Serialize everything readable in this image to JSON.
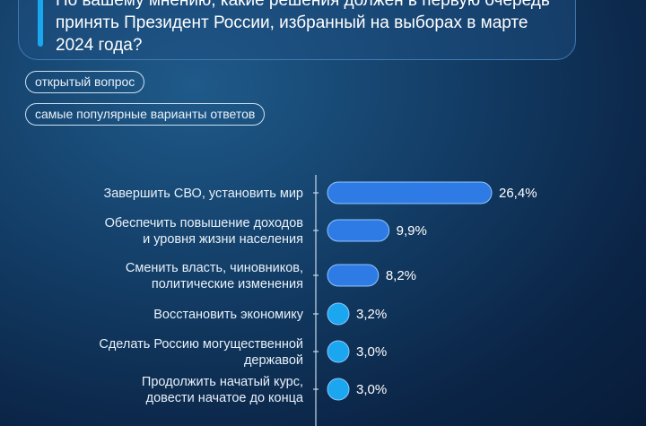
{
  "question": {
    "line1": "По вашему мнению, какие решения должен в первую очередь",
    "line2": "принять Президент России, избранный на выборах в марте",
    "line3": "2024 года?"
  },
  "chips": {
    "open_question": "открытый вопрос",
    "popular_answers": "самые популярные варианты ответов"
  },
  "colors": {
    "bar_fill": "#2f7be6",
    "bar_stroke": "#8fc4ff",
    "dot_fill": "#1aa7ef",
    "axis": "#c9d9ea"
  },
  "chart_data": {
    "type": "bar",
    "orientation": "horizontal",
    "unit": "%",
    "categories": [
      [
        "Завершить СВО, установить мир"
      ],
      [
        "Обеспечить повышение доходов",
        "и уровня жизни населения"
      ],
      [
        "Сменить власть, чиновников,",
        "политические изменения"
      ],
      [
        "Восстановить экономику"
      ],
      [
        "Сделать Россию могущественной",
        "державой"
      ],
      [
        "Продолжить начатый курс,",
        "довести начатое до конца"
      ]
    ],
    "values": [
      26.4,
      9.9,
      8.2,
      3.2,
      3.0,
      3.0
    ],
    "value_labels": [
      "26,4%",
      "9,9%",
      "8,2%",
      "3,2%",
      "3,0%",
      "3,0%"
    ]
  }
}
